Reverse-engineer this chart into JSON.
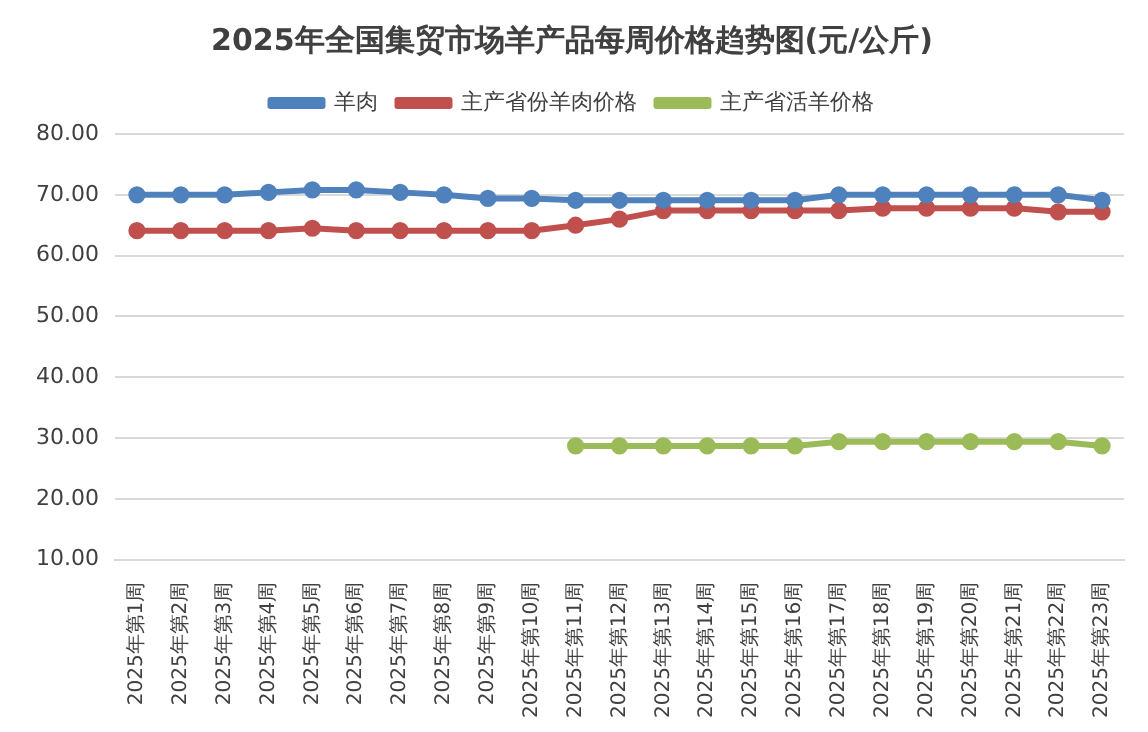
{
  "chart_data": {
    "type": "line",
    "title": "2025年全国集贸市场羊产品每周价格趋势图(元/公斤)",
    "categories": [
      "2025年第1周",
      "2025年第2周",
      "2025年第3周",
      "2025年第4周",
      "2025年第5周",
      "2025年第6周",
      "2025年第7周",
      "2025年第8周",
      "2025年第9周",
      "2025年第10周",
      "2025年第11周",
      "2025年第12周",
      "2025年第13周",
      "2025年第14周",
      "2025年第15周",
      "2025年第16周",
      "2025年第17周",
      "2025年第18周",
      "2025年第19周",
      "2025年第20周",
      "2025年第21周",
      "2025年第22周",
      "2025年第23周"
    ],
    "series": [
      {
        "name": "羊肉",
        "color": "#4f81bd",
        "values": [
          70.0,
          70.0,
          70.0,
          70.4,
          70.8,
          70.8,
          70.4,
          70.0,
          69.4,
          69.4,
          69.1,
          69.1,
          69.1,
          69.1,
          69.1,
          69.1,
          70.0,
          70.0,
          70.0,
          70.0,
          70.0,
          70.0,
          69.1
        ]
      },
      {
        "name": "主产省份羊肉价格",
        "color": "#c0504d",
        "values": [
          64.1,
          64.1,
          64.1,
          64.1,
          64.5,
          64.1,
          64.1,
          64.1,
          64.1,
          64.1,
          65.0,
          66.0,
          67.4,
          67.4,
          67.4,
          67.4,
          67.4,
          67.8,
          67.8,
          67.8,
          67.8,
          67.2,
          67.2
        ]
      },
      {
        "name": "主产省活羊价格",
        "color": "#9bbb59",
        "values": [
          null,
          null,
          null,
          null,
          null,
          null,
          null,
          null,
          null,
          null,
          28.7,
          28.7,
          28.7,
          28.7,
          28.7,
          28.7,
          29.4,
          29.4,
          29.4,
          29.4,
          29.4,
          29.4,
          28.7
        ]
      }
    ],
    "ylim": [
      10,
      80
    ],
    "yticks": [
      {
        "value": 10,
        "label": "10.00"
      },
      {
        "value": 20,
        "label": "20.00"
      },
      {
        "value": 30,
        "label": "30.00"
      },
      {
        "value": 40,
        "label": "40.00"
      },
      {
        "value": 50,
        "label": "50.00"
      },
      {
        "value": 60,
        "label": "60.00"
      },
      {
        "value": 70,
        "label": "70.00"
      },
      {
        "value": 80,
        "label": "80.00"
      }
    ],
    "grid": "y",
    "legend": "top",
    "marker": "circle",
    "line_style": "solid"
  }
}
